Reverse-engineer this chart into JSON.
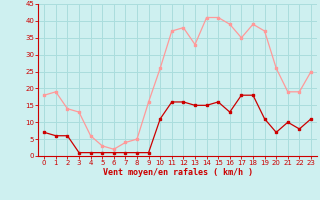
{
  "hours": [
    0,
    1,
    2,
    3,
    4,
    5,
    6,
    7,
    8,
    9,
    10,
    11,
    12,
    13,
    14,
    15,
    16,
    17,
    18,
    19,
    20,
    21,
    22,
    23
  ],
  "wind_mean": [
    7,
    6,
    6,
    1,
    1,
    1,
    1,
    1,
    1,
    1,
    11,
    16,
    16,
    15,
    15,
    16,
    13,
    18,
    18,
    11,
    7,
    10,
    8,
    11
  ],
  "wind_gust": [
    18,
    19,
    14,
    13,
    6,
    3,
    2,
    4,
    5,
    16,
    26,
    37,
    38,
    33,
    41,
    41,
    39,
    35,
    39,
    37,
    26,
    19,
    19,
    25
  ],
  "bg_color": "#cef0f0",
  "grid_color": "#aadddd",
  "mean_color": "#cc0000",
  "gust_color": "#ff9999",
  "xlabel": "Vent moyen/en rafales ( km/h )",
  "xlabel_color": "#cc0000",
  "xlim": [
    -0.5,
    23.5
  ],
  "ylim": [
    0,
    45
  ],
  "yticks": [
    0,
    5,
    10,
    15,
    20,
    25,
    30,
    35,
    40,
    45
  ],
  "xticks": [
    0,
    1,
    2,
    3,
    4,
    5,
    6,
    7,
    8,
    9,
    10,
    11,
    12,
    13,
    14,
    15,
    16,
    17,
    18,
    19,
    20,
    21,
    22,
    23
  ],
  "marker": "s",
  "markersize": 2.0,
  "linewidth": 0.9
}
